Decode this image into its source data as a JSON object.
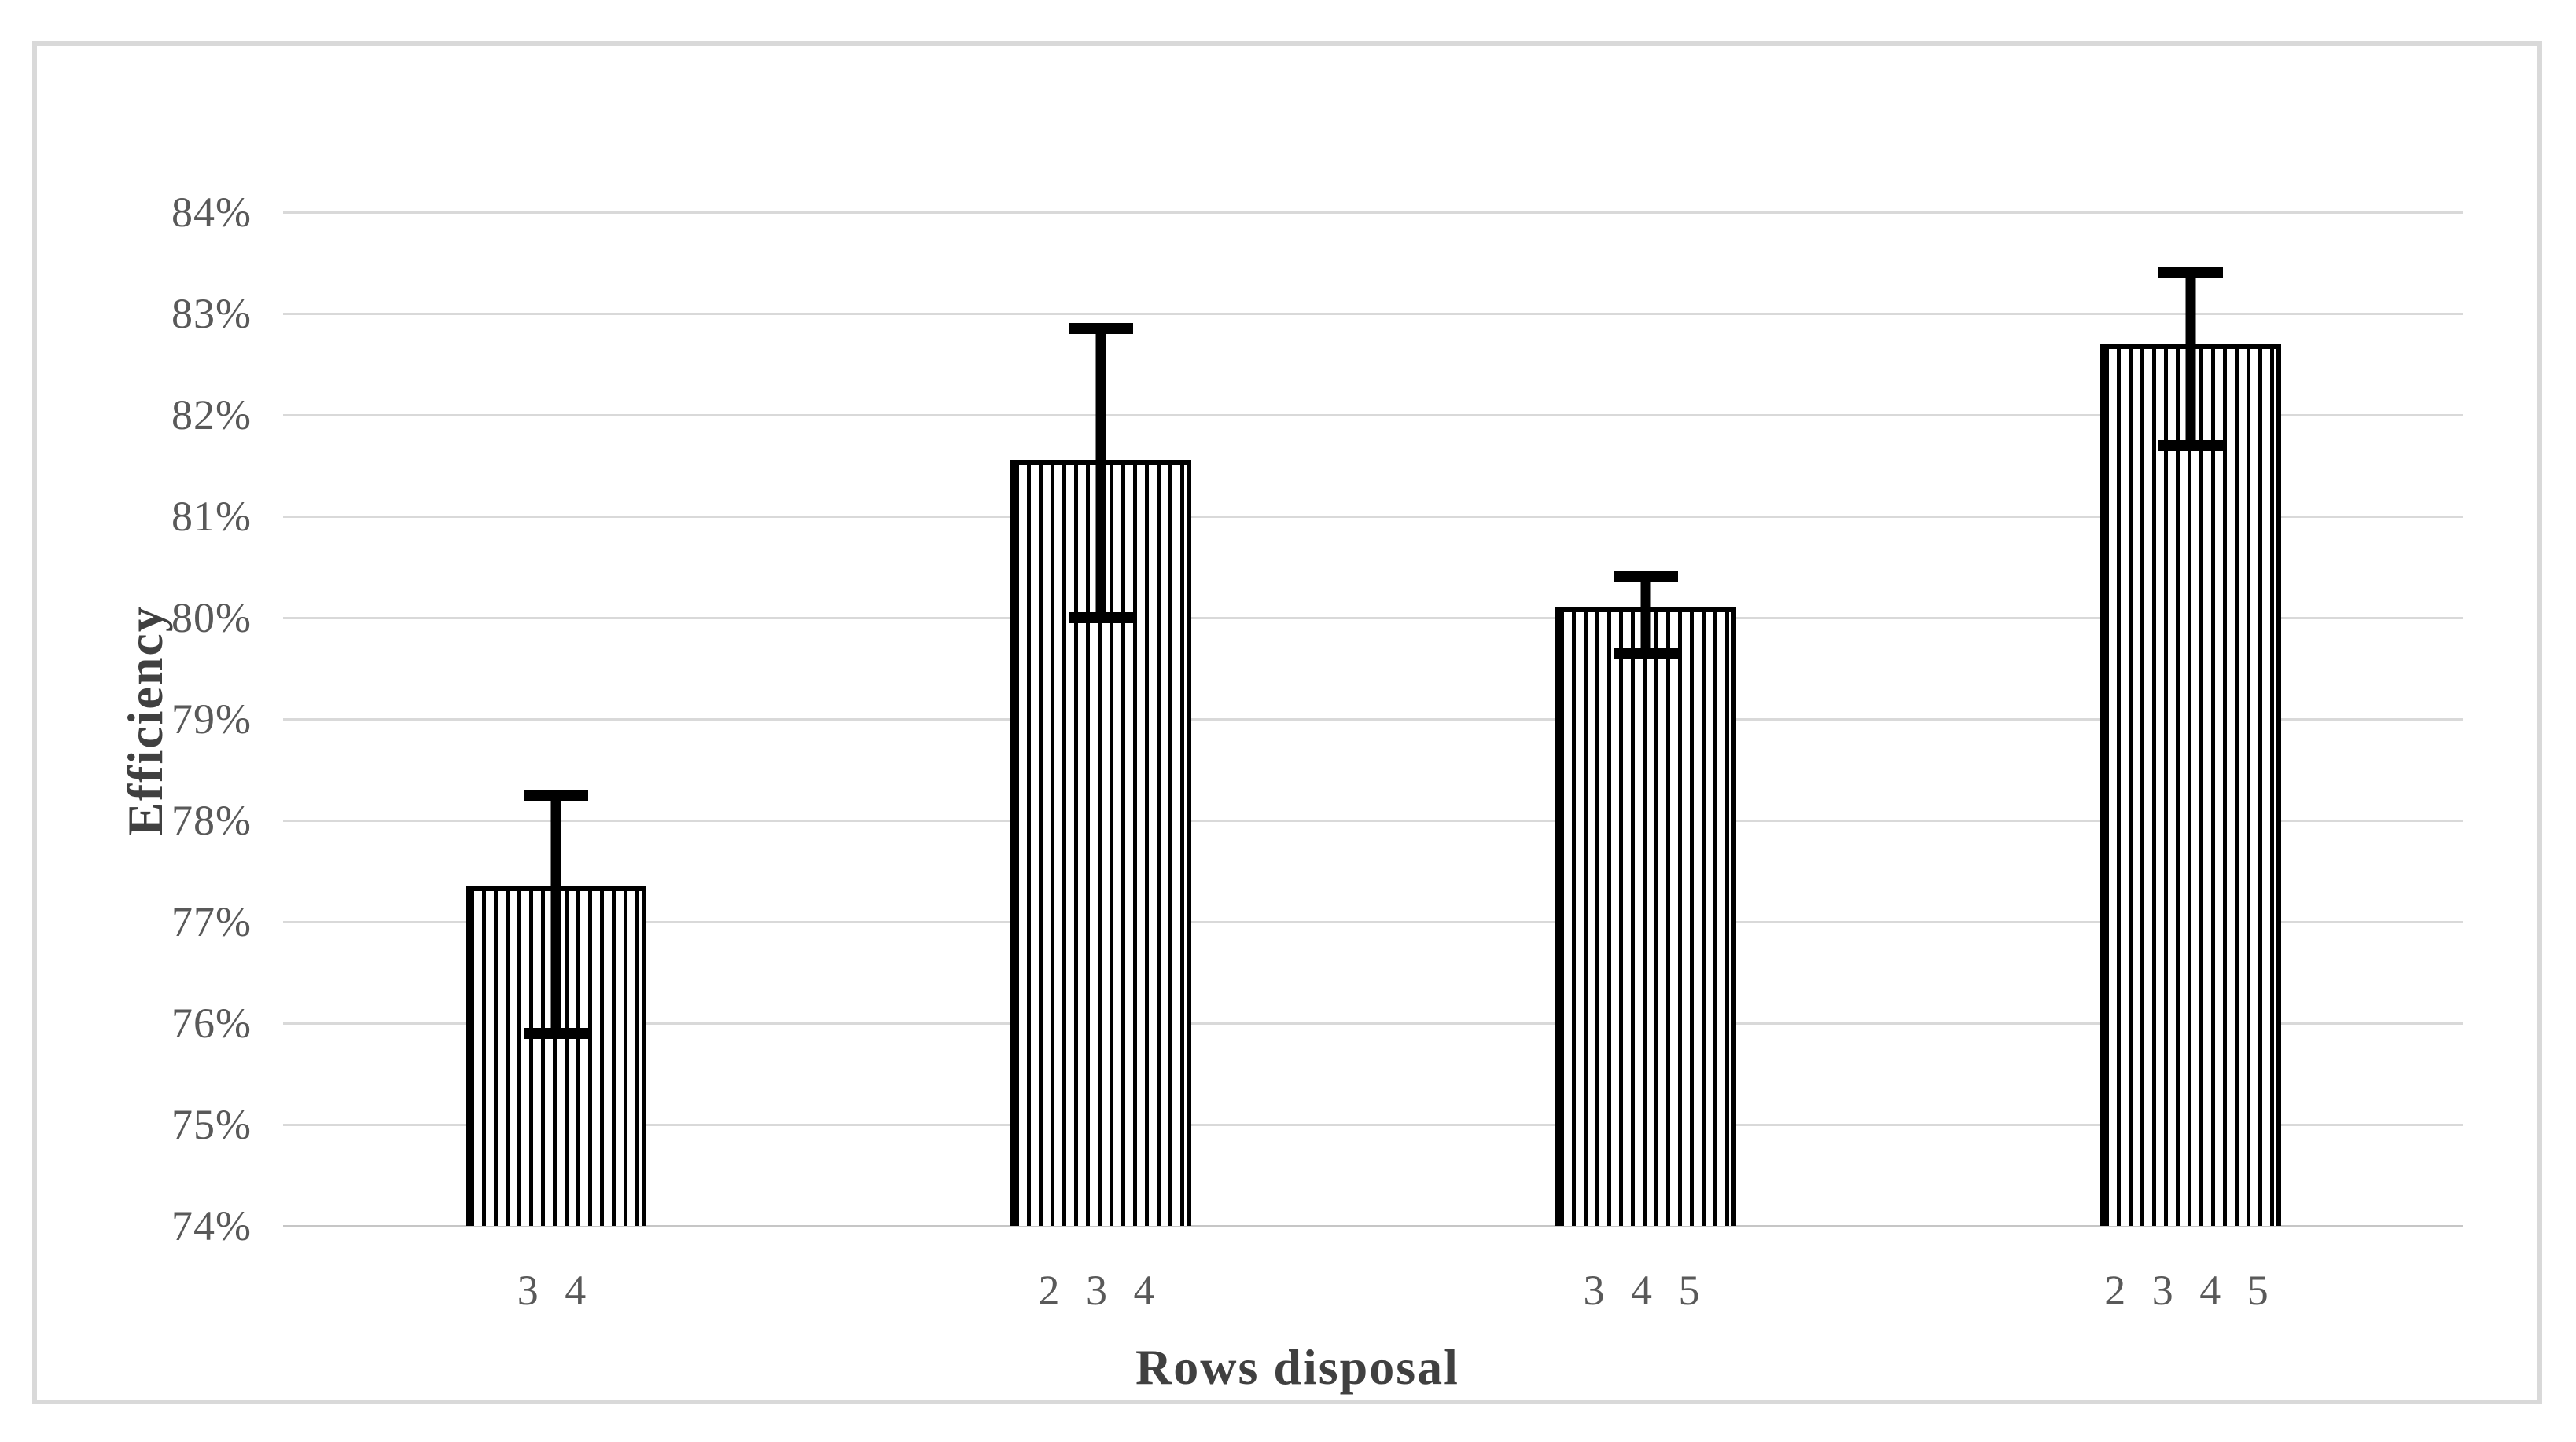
{
  "figure": {
    "background": "#ffffff",
    "border_color": "#d9d9d9"
  },
  "chart_data": {
    "type": "bar",
    "title": "",
    "xlabel": "Rows disposal",
    "ylabel": "Efficiency",
    "categories": [
      "3 4",
      "2 3 4",
      "3 4 5",
      "2 3 4 5"
    ],
    "series": [
      {
        "name": "Efficiency",
        "values": [
          77.35,
          81.55,
          80.1,
          82.7
        ],
        "error_upper": [
          78.25,
          82.85,
          80.4,
          83.4
        ],
        "error_lower": [
          75.9,
          80.0,
          79.65,
          81.7
        ]
      }
    ],
    "ylim": [
      74,
      84
    ],
    "ytick_step": 1,
    "yticks": [
      "74%",
      "75%",
      "76%",
      "77%",
      "78%",
      "79%",
      "80%",
      "81%",
      "82%",
      "83%",
      "84%"
    ],
    "grid": "horizontal",
    "legend": "none",
    "styles": {
      "bar_fill": "#ffffff",
      "bar_hatch": "vertical-black-stripes",
      "bar_stroke": "#000000",
      "error_bar_color": "#000000",
      "gridline_color": "#d9d9d9",
      "axis_line_color": "#c6c6c6",
      "tick_label_color": "#595959",
      "axis_title_color": "#404040"
    }
  }
}
